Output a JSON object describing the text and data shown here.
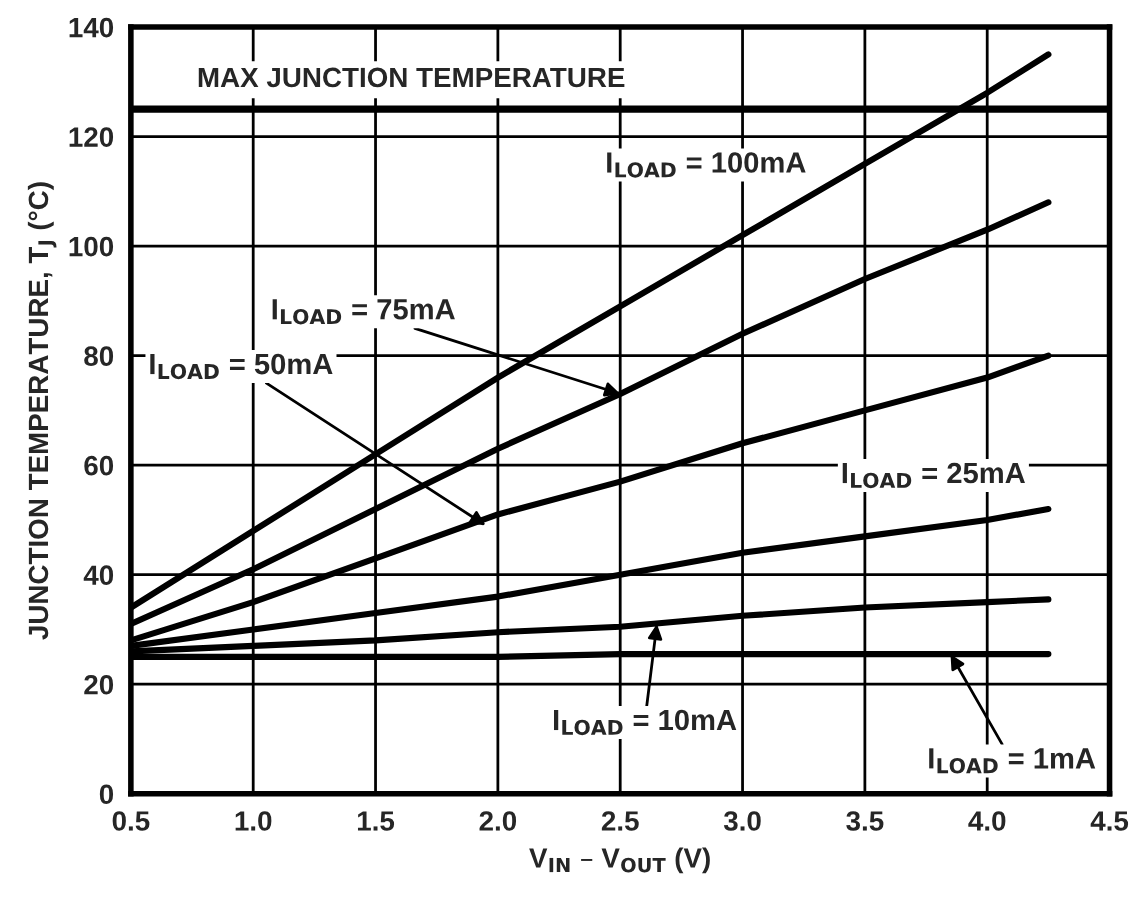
{
  "chart_data": {
    "type": "line",
    "xlabel": "V$_{IN}$ – V$_{OUT}$ (V)",
    "ylabel": "JUNCTION TEMPERATURE, T$_{J}$ (°C)",
    "x": [
      0.5,
      1.0,
      1.5,
      2.0,
      2.5,
      3.0,
      3.5,
      4.0,
      4.25
    ],
    "series": [
      {
        "color": "#000000",
        "values": [
          34,
          48,
          62,
          76,
          89,
          102,
          115,
          128,
          135
        ]
      },
      {
        "color": "#000000",
        "values": [
          31,
          41,
          52,
          63,
          73,
          84,
          94,
          103,
          108
        ]
      },
      {
        "color": "#000000",
        "values": [
          28,
          35,
          43,
          51,
          57,
          64,
          70,
          76,
          80
        ]
      },
      {
        "color": "#000000",
        "values": [
          27,
          30,
          33,
          36,
          40,
          44,
          47,
          50,
          52
        ]
      },
      {
        "color": "#000000",
        "values": [
          26,
          27,
          28,
          29.5,
          30.5,
          32.5,
          34,
          35,
          35.5
        ]
      },
      {
        "color": "#000000",
        "values": [
          25,
          25,
          25,
          25,
          25.5,
          25.5,
          25.5,
          25.5,
          25.5
        ]
      }
    ],
    "ref_lines": [
      {
        "axis": "y",
        "value": 125,
        "label": "MAX JUNCTION TEMPERATURE",
        "color": "#000000"
      }
    ],
    "annotations": [
      "I$_{LOAD}$ = 100mA",
      {
        "text": "I$_{LOAD}$ = 75mA",
        "x": 2.5,
        "y": 73
      },
      {
        "text": "I$_{LOAD}$ = 50mA",
        "x": 1.95,
        "y": 49
      },
      "I$_{LOAD}$ = 25mA",
      {
        "text": "I$_{LOAD}$ = 10mA",
        "x": 2.65,
        "y": 31
      },
      {
        "text": "I$_{LOAD}$ = 1mA",
        "x": 3.85,
        "y": 25.5
      }
    ],
    "xlim": [
      0.5,
      4.5
    ],
    "ylim": [
      0,
      140
    ],
    "xticks": [
      0.5,
      {
        "value": 1,
        "label": "1.0"
      },
      1.5,
      {
        "value": 2,
        "label": "2.0"
      },
      2.5,
      {
        "value": 3,
        "label": "3.0"
      },
      3.5,
      {
        "value": 4,
        "label": "4.0"
      },
      4.5
    ],
    "yticks": [
      0,
      20,
      40,
      60,
      80,
      100,
      120,
      140
    ],
    "grid": true,
    "marker": "none",
    "line_style": "solid",
    "legend": false
  }
}
